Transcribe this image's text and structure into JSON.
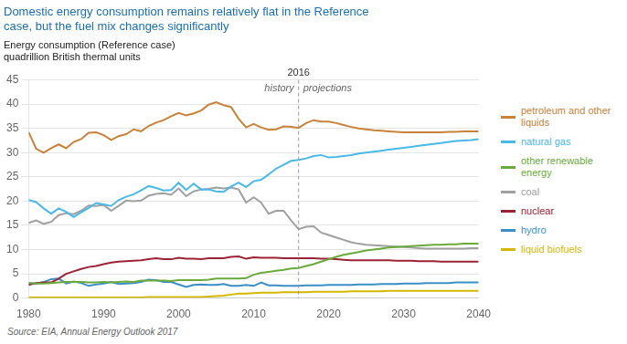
{
  "chart_data": {
    "type": "line",
    "title": [
      "Domestic energy consumption remains relatively flat in the Reference",
      "case, but the fuel mix changes significantly"
    ],
    "subtitle": [
      "Energy consumption (Reference case)",
      "quadrillion British thermal units"
    ],
    "source": "Source: EIA, Annual Energy Outlook 2017",
    "annotations": [
      {
        "x": 2016,
        "text": "2016",
        "line_style": "dashed",
        "before": "history",
        "after": "projections"
      }
    ],
    "x": [
      1980,
      1981,
      1982,
      1983,
      1984,
      1985,
      1986,
      1987,
      1988,
      1989,
      1990,
      1991,
      1992,
      1993,
      1994,
      1995,
      1996,
      1997,
      1998,
      1999,
      2000,
      2001,
      2002,
      2003,
      2004,
      2005,
      2006,
      2007,
      2008,
      2009,
      2010,
      2011,
      2012,
      2013,
      2014,
      2015,
      2016,
      2017,
      2018,
      2019,
      2020,
      2021,
      2022,
      2023,
      2024,
      2025,
      2026,
      2027,
      2028,
      2029,
      2030,
      2031,
      2032,
      2033,
      2034,
      2035,
      2036,
      2037,
      2038,
      2039,
      2040
    ],
    "series": [
      {
        "name": "petroleum and other\nliquids",
        "color": "#c8823a",
        "values": [
          34.2,
          30.8,
          30.0,
          30.9,
          31.7,
          30.9,
          32.2,
          32.8,
          34.1,
          34.2,
          33.6,
          32.6,
          33.4,
          33.8,
          34.8,
          34.4,
          35.5,
          36.2,
          36.7,
          37.5,
          38.2,
          37.7,
          38.1,
          38.7,
          39.9,
          40.4,
          39.8,
          39.4,
          37.0,
          35.2,
          35.9,
          35.2,
          34.7,
          34.8,
          35.4,
          35.3,
          35.1,
          36.1,
          36.7,
          36.4,
          36.4,
          36.1,
          35.7,
          35.3,
          35.0,
          34.8,
          34.6,
          34.5,
          34.4,
          34.3,
          34.2,
          34.2,
          34.2,
          34.2,
          34.2,
          34.2,
          34.3,
          34.3,
          34.4,
          34.4,
          34.4
        ]
      },
      {
        "name": "natural gas",
        "color": "#4ab8e8",
        "values": [
          20.2,
          19.8,
          18.5,
          17.4,
          18.5,
          17.8,
          16.7,
          17.7,
          18.6,
          19.6,
          19.3,
          19.0,
          20.2,
          20.9,
          21.4,
          22.2,
          23.1,
          22.7,
          22.2,
          22.3,
          23.8,
          22.3,
          23.6,
          22.4,
          22.4,
          22.0,
          21.9,
          23.0,
          23.8,
          22.9,
          24.1,
          24.4,
          25.5,
          26.7,
          27.5,
          28.3,
          28.5,
          28.8,
          29.3,
          29.5,
          29.0,
          29.1,
          29.3,
          29.5,
          29.8,
          30.0,
          30.2,
          30.4,
          30.6,
          30.8,
          31.0,
          31.2,
          31.4,
          31.6,
          31.8,
          32.0,
          32.2,
          32.4,
          32.5,
          32.6,
          32.8
        ]
      },
      {
        "name": "other renewable\nenergy",
        "color": "#6aaa3a",
        "values": [
          3.1,
          3.0,
          3.0,
          3.1,
          3.2,
          3.3,
          3.3,
          3.3,
          3.2,
          3.2,
          3.3,
          3.2,
          3.3,
          3.4,
          3.3,
          3.6,
          3.6,
          3.6,
          3.6,
          3.5,
          3.7,
          3.7,
          3.7,
          3.7,
          3.8,
          4.0,
          4.0,
          4.0,
          4.0,
          4.1,
          4.8,
          5.2,
          5.4,
          5.6,
          5.8,
          6.1,
          6.2,
          6.6,
          7.0,
          7.5,
          8.0,
          8.5,
          8.9,
          9.2,
          9.5,
          9.8,
          10.0,
          10.2,
          10.4,
          10.5,
          10.6,
          10.7,
          10.8,
          10.9,
          11.0,
          11.0,
          11.1,
          11.1,
          11.2,
          11.2,
          11.2
        ]
      },
      {
        "name": "coal",
        "color": "#a0a0a0",
        "values": [
          15.5,
          16.0,
          15.3,
          15.7,
          17.1,
          17.5,
          17.3,
          18.0,
          19.1,
          19.0,
          19.2,
          18.0,
          19.0,
          20.1,
          20.0,
          20.1,
          21.1,
          21.5,
          21.6,
          21.3,
          22.6,
          21.0,
          22.0,
          22.4,
          22.5,
          22.8,
          22.6,
          22.8,
          22.4,
          19.7,
          20.8,
          19.7,
          17.4,
          18.0,
          18.0,
          16.0,
          14.2,
          14.7,
          14.8,
          13.5,
          13.0,
          12.5,
          12.0,
          11.5,
          11.2,
          11.0,
          10.9,
          10.8,
          10.7,
          10.6,
          10.5,
          10.4,
          10.3,
          10.2,
          10.2,
          10.2,
          10.2,
          10.2,
          10.2,
          10.3,
          10.3
        ]
      },
      {
        "name": "nuclear",
        "color": "#9b2335",
        "values": [
          2.7,
          3.1,
          3.2,
          3.2,
          4.0,
          5.0,
          5.5,
          6.0,
          6.4,
          6.6,
          7.0,
          7.3,
          7.5,
          7.6,
          7.7,
          7.8,
          8.0,
          8.2,
          8.0,
          8.0,
          8.3,
          8.1,
          8.1,
          8.0,
          8.2,
          8.2,
          8.2,
          8.5,
          8.6,
          8.1,
          8.4,
          8.3,
          8.3,
          8.3,
          8.2,
          8.2,
          8.2,
          8.2,
          8.2,
          8.1,
          8.1,
          8.0,
          7.9,
          7.8,
          7.8,
          7.8,
          7.8,
          7.8,
          7.8,
          7.7,
          7.7,
          7.7,
          7.6,
          7.6,
          7.6,
          7.5,
          7.5,
          7.5,
          7.5,
          7.5,
          7.5
        ]
      },
      {
        "name": "hydro",
        "color": "#3a8fc8",
        "values": [
          3.1,
          3.0,
          3.3,
          3.9,
          4.0,
          3.0,
          3.4,
          3.1,
          2.5,
          2.8,
          3.0,
          3.3,
          2.9,
          3.0,
          3.1,
          3.3,
          3.8,
          3.7,
          3.3,
          3.3,
          2.8,
          2.3,
          2.7,
          2.8,
          2.7,
          2.7,
          2.9,
          2.5,
          2.5,
          2.7,
          2.5,
          3.2,
          2.6,
          2.6,
          2.5,
          2.5,
          2.5,
          2.6,
          2.6,
          2.6,
          2.7,
          2.7,
          2.7,
          2.7,
          2.8,
          2.8,
          2.8,
          2.9,
          2.9,
          2.9,
          3.0,
          3.0,
          3.0,
          3.1,
          3.1,
          3.1,
          3.1,
          3.2,
          3.2,
          3.2,
          3.2
        ]
      },
      {
        "name": "liquid biofuels",
        "color": "#d4b800",
        "values": [
          0.1,
          0.1,
          0.1,
          0.1,
          0.1,
          0.1,
          0.1,
          0.1,
          0.1,
          0.1,
          0.1,
          0.1,
          0.1,
          0.1,
          0.1,
          0.1,
          0.2,
          0.2,
          0.2,
          0.2,
          0.2,
          0.2,
          0.2,
          0.2,
          0.3,
          0.4,
          0.5,
          0.7,
          0.9,
          0.9,
          1.0,
          1.1,
          1.1,
          1.1,
          1.2,
          1.2,
          1.2,
          1.2,
          1.3,
          1.3,
          1.3,
          1.3,
          1.3,
          1.4,
          1.4,
          1.4,
          1.4,
          1.4,
          1.5,
          1.5,
          1.5,
          1.5,
          1.5,
          1.5,
          1.5,
          1.5,
          1.5,
          1.5,
          1.5,
          1.5,
          1.5
        ]
      }
    ],
    "xlim": [
      1980,
      2040
    ],
    "xticks": [
      1980,
      1990,
      2000,
      2010,
      2020,
      2030,
      2040
    ],
    "ylim": [
      0,
      45
    ],
    "yticks": [
      0,
      5,
      10,
      15,
      20,
      25,
      30,
      35,
      40,
      45
    ],
    "grid": "y",
    "legend": "right"
  }
}
